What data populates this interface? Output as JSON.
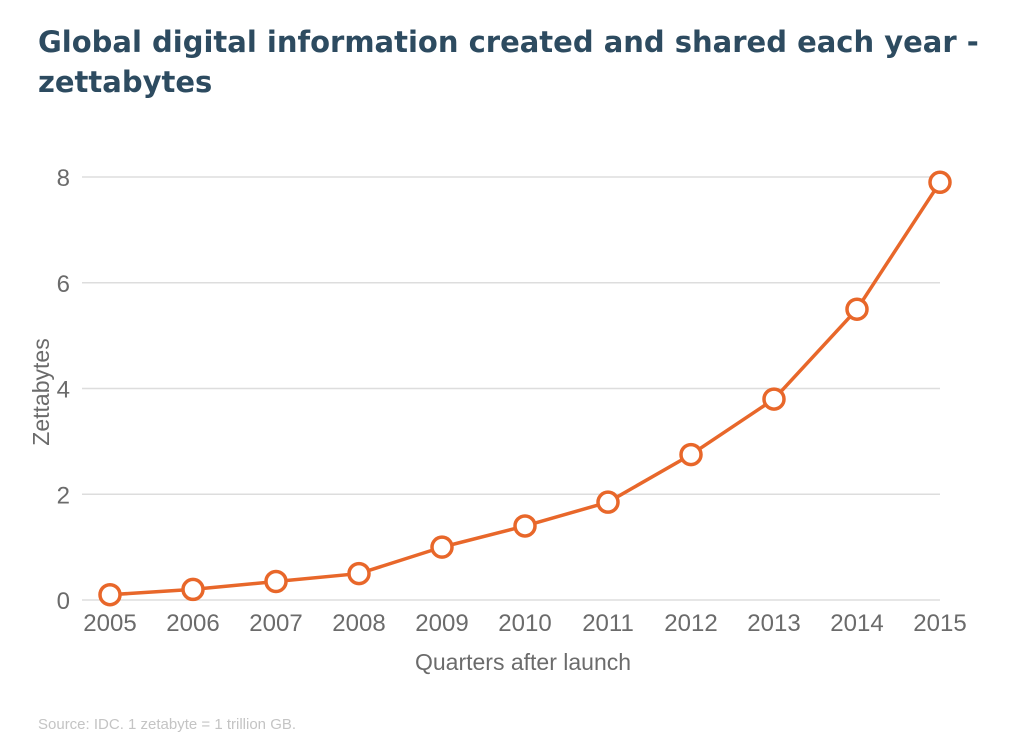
{
  "colors": {
    "title": "#2d4b60",
    "series": "#e8672a",
    "grid": "#dddddd",
    "axis_text": "#6b6b6b",
    "source_text": "#c4c4c4"
  },
  "chart_data": {
    "type": "line",
    "title": "Global digital information created and shared each year - zettabytes",
    "xlabel": "Quarters after launch",
    "ylabel": "Zettabytes",
    "categories": [
      "2005",
      "2006",
      "2007",
      "2008",
      "2009",
      "2010",
      "2011",
      "2012",
      "2013",
      "2014",
      "2015"
    ],
    "series": [
      {
        "values": [
          0.1,
          0.2,
          0.35,
          0.5,
          1.0,
          1.4,
          1.85,
          2.75,
          3.8,
          5.5,
          7.9
        ]
      }
    ],
    "ylim": [
      0,
      8
    ],
    "yticks": [
      "0",
      "2",
      "4",
      "6",
      "8"
    ],
    "grid": true,
    "legend": "none",
    "marker": "hollow-circle",
    "source": "Source: IDC. 1 zetabyte = 1 trillion GB."
  }
}
